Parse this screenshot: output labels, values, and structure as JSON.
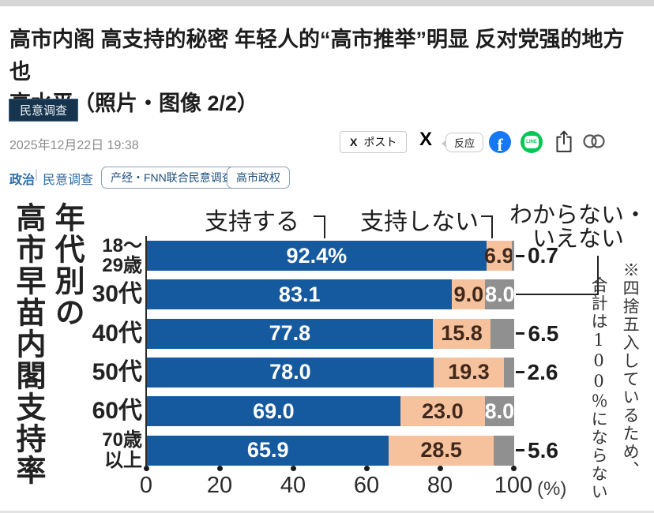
{
  "header": {
    "title_line1": "高市内阁 高支持的秘密 年轻人的“高市推举”明显 反对党强的地方也",
    "title_line2": "高水平（照片・图像 2/2）",
    "category_badge": "民意调查",
    "date": "2025年12月22日 19:38"
  },
  "share": {
    "x_glyph": "X",
    "post_label": "ポスト",
    "reaction_label": "反应",
    "facebook_glyph": "f",
    "line_text": "LINE",
    "facebook_color": "#1877f2",
    "line_color": "#06c755"
  },
  "breadcrumb": {
    "cat1": "政治",
    "separator": "|",
    "cat2": "民意调查"
  },
  "tags": [
    "产经・FNN联合民意调查",
    "高市政权"
  ],
  "chart_data": {
    "type": "bar",
    "orientation": "horizontal",
    "stacked": true,
    "title": "年代別の高市早苗内閣支持率",
    "title_col1": "年代別の",
    "title_col2": "高市早苗内閣支持率",
    "categories": [
      "18～29歳",
      "30代",
      "40代",
      "50代",
      "60代",
      "70歳以上"
    ],
    "series": [
      {
        "key": "support",
        "name": "支持する",
        "color": "#15599e",
        "label_color": "#ffffff",
        "values": [
          92.4,
          83.1,
          77.8,
          78.0,
          69.0,
          65.9
        ]
      },
      {
        "key": "oppose",
        "name": "支持しない",
        "color": "#f6c29e",
        "label_color": "#40291c",
        "values": [
          6.9,
          9.0,
          15.8,
          19.3,
          23.0,
          28.5
        ]
      },
      {
        "key": "unknown",
        "name": "わからない・いえない",
        "color": "#909090",
        "label_color": "#ffffff",
        "values": [
          0.7,
          8.0,
          6.5,
          2.6,
          8.0,
          5.6
        ]
      }
    ],
    "rows": [
      {
        "label_lines": [
          "18～",
          "29歳"
        ],
        "values": [
          92.4,
          6.9,
          0.7
        ],
        "labels": [
          "92.4%",
          "6.9",
          "0.7"
        ],
        "outside": [
          false,
          false,
          true
        ]
      },
      {
        "label_lines": [
          "30代"
        ],
        "values": [
          83.1,
          9.0,
          8.0
        ],
        "labels": [
          "83.1",
          "9.0",
          "8.0"
        ],
        "outside": [
          false,
          false,
          false
        ]
      },
      {
        "label_lines": [
          "40代"
        ],
        "values": [
          77.8,
          15.8,
          6.5
        ],
        "labels": [
          "77.8",
          "15.8",
          "6.5"
        ],
        "outside": [
          false,
          false,
          true
        ]
      },
      {
        "label_lines": [
          "50代"
        ],
        "values": [
          78.0,
          19.3,
          2.6
        ],
        "labels": [
          "78.0",
          "19.3",
          "2.6"
        ],
        "outside": [
          false,
          false,
          true
        ]
      },
      {
        "label_lines": [
          "60代"
        ],
        "values": [
          69.0,
          23.0,
          8.0
        ],
        "labels": [
          "69.0",
          "23.0",
          "8.0"
        ],
        "outside": [
          false,
          false,
          false
        ]
      },
      {
        "label_lines": [
          "70歳",
          "以上"
        ],
        "values": [
          65.9,
          28.5,
          5.6
        ],
        "labels": [
          "65.9",
          "28.5",
          "5.6"
        ],
        "outside": [
          false,
          false,
          true
        ]
      }
    ],
    "x_ticks": [
      0,
      20,
      40,
      60,
      80,
      100
    ],
    "x_unit": "(%)",
    "xlim": [
      0,
      100
    ],
    "grid": false,
    "note": "※四捨五入しているため、合計は100％にならない",
    "note_col1": "※四捨五入しているため、",
    "note_col2": "合計は100％にならない"
  }
}
